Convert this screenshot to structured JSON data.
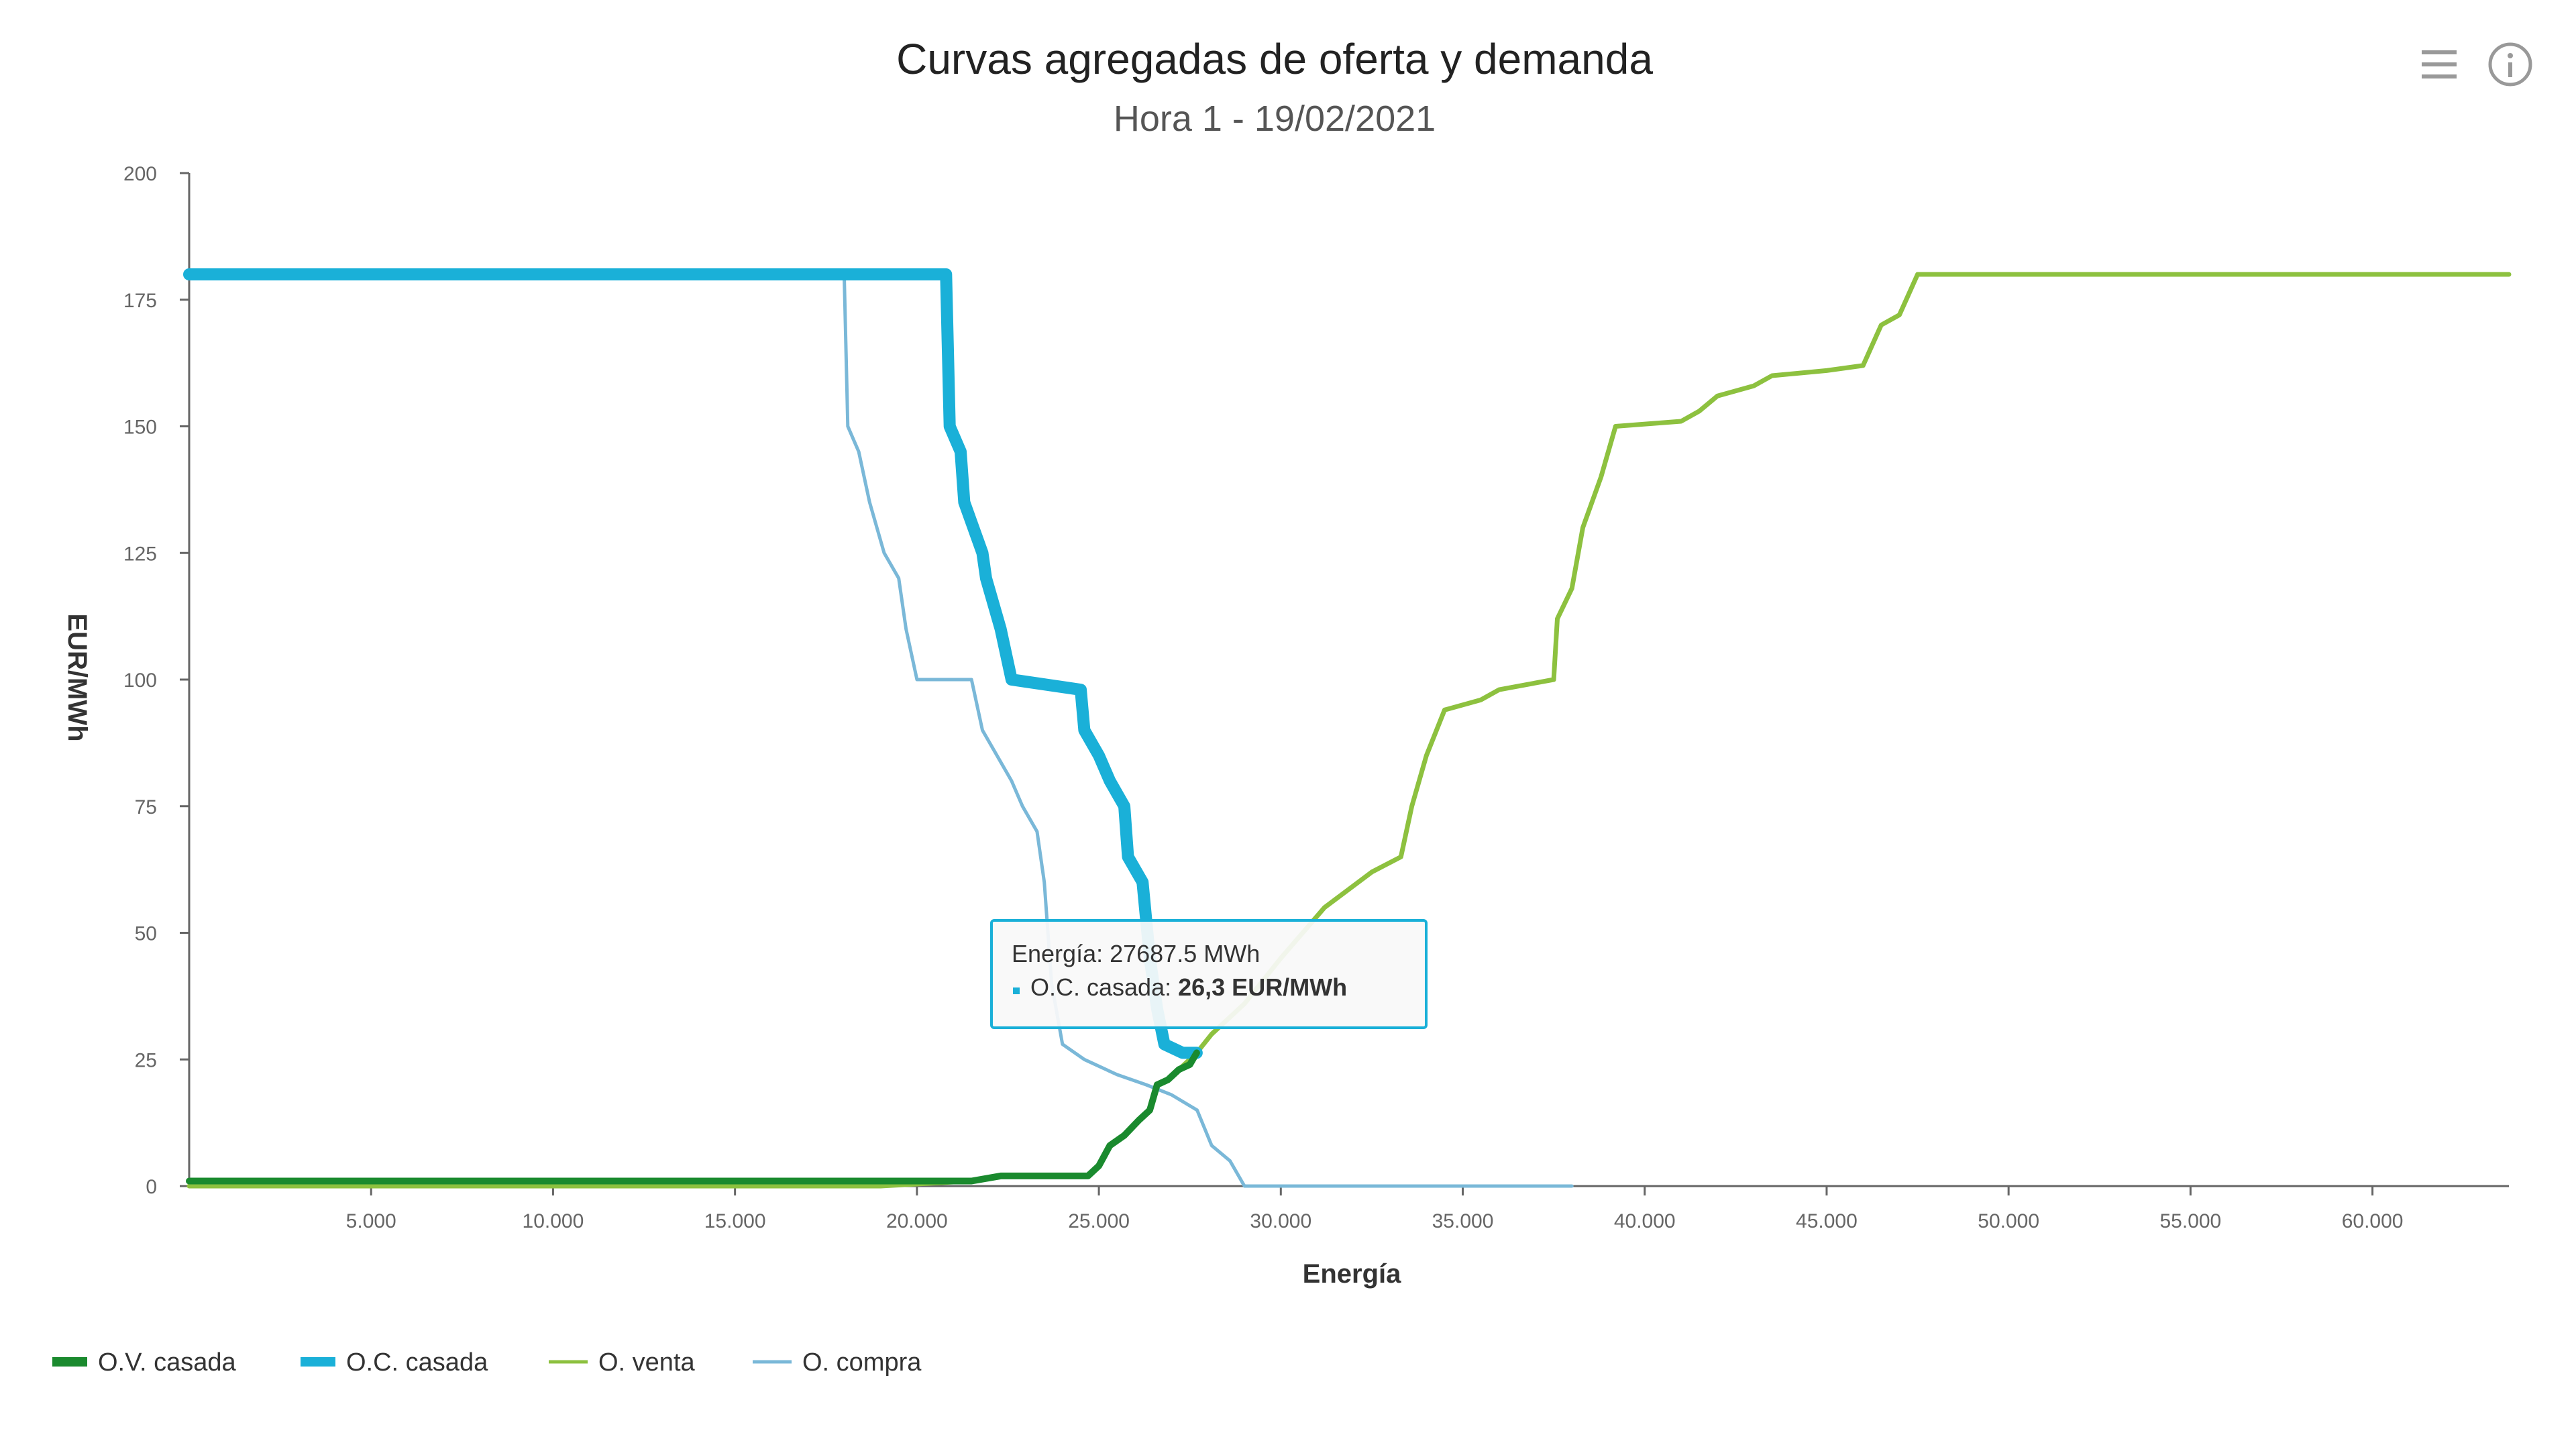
{
  "chart_data": {
    "type": "line",
    "title": "Curvas agregadas de oferta y demanda",
    "subtitle": "Hora 1 - 19/02/2021",
    "xlabel": "Energía",
    "ylabel": "EUR/MWh",
    "xlim": [
      0,
      63750
    ],
    "ylim": [
      0,
      200
    ],
    "x_ticks": [
      5000,
      10000,
      15000,
      20000,
      25000,
      30000,
      35000,
      40000,
      45000,
      50000,
      55000,
      60000
    ],
    "x_tick_labels": [
      "5.000",
      "10.000",
      "15.000",
      "20.000",
      "25.000",
      "30.000",
      "35.000",
      "40.000",
      "45.000",
      "50.000",
      "55.000",
      "60.000"
    ],
    "y_ticks": [
      0,
      25,
      50,
      75,
      100,
      125,
      150,
      175,
      200
    ],
    "y_tick_labels": [
      "0",
      "25",
      "50",
      "75",
      "100",
      "125",
      "150",
      "175",
      "200"
    ],
    "grid": false,
    "legend_position": "bottom-left",
    "series": [
      {
        "name": "O.V. casada",
        "color": "#1a8a2e",
        "points": [
          [
            0,
            1
          ],
          [
            21500,
            1
          ],
          [
            22300,
            2
          ],
          [
            24700,
            2
          ],
          [
            25000,
            4
          ],
          [
            25300,
            8
          ],
          [
            25700,
            10
          ],
          [
            26100,
            13
          ],
          [
            26400,
            15
          ],
          [
            26600,
            20
          ],
          [
            26900,
            21
          ],
          [
            27200,
            23
          ],
          [
            27500,
            24
          ],
          [
            27687.5,
            26.3
          ]
        ]
      },
      {
        "name": "O.C. casada",
        "color": "#1ab0d8",
        "points": [
          [
            0,
            180
          ],
          [
            20800,
            180
          ],
          [
            20900,
            150
          ],
          [
            21200,
            145
          ],
          [
            21300,
            135
          ],
          [
            21800,
            125
          ],
          [
            21900,
            120
          ],
          [
            22300,
            110
          ],
          [
            22600,
            100
          ],
          [
            24500,
            98
          ],
          [
            24600,
            90
          ],
          [
            25000,
            85
          ],
          [
            25300,
            80
          ],
          [
            25700,
            75
          ],
          [
            25800,
            65
          ],
          [
            26200,
            60
          ],
          [
            26400,
            45
          ],
          [
            26600,
            35
          ],
          [
            26800,
            28
          ],
          [
            27300,
            26.3
          ],
          [
            27687.5,
            26.3
          ]
        ]
      },
      {
        "name": "O. venta",
        "color": "#8dc13f",
        "points": [
          [
            0,
            0
          ],
          [
            19000,
            0
          ],
          [
            21500,
            1
          ],
          [
            22300,
            2
          ],
          [
            24700,
            2
          ],
          [
            25000,
            4
          ],
          [
            25300,
            8
          ],
          [
            25700,
            10
          ],
          [
            26100,
            13
          ],
          [
            26400,
            15
          ],
          [
            26600,
            20
          ],
          [
            26900,
            21
          ],
          [
            27200,
            23
          ],
          [
            27687.5,
            26.3
          ],
          [
            28100,
            30
          ],
          [
            29000,
            36
          ],
          [
            30000,
            45
          ],
          [
            31200,
            55
          ],
          [
            32500,
            62
          ],
          [
            33300,
            65
          ],
          [
            33600,
            75
          ],
          [
            34000,
            85
          ],
          [
            34500,
            94
          ],
          [
            35500,
            96
          ],
          [
            36000,
            98
          ],
          [
            37500,
            100
          ],
          [
            37600,
            112
          ],
          [
            38000,
            118
          ],
          [
            38300,
            130
          ],
          [
            38800,
            140
          ],
          [
            39200,
            150
          ],
          [
            41000,
            151
          ],
          [
            41500,
            153
          ],
          [
            42000,
            156
          ],
          [
            43000,
            158
          ],
          [
            43500,
            160
          ],
          [
            45000,
            161
          ],
          [
            46000,
            162
          ],
          [
            46500,
            170
          ],
          [
            47000,
            172
          ],
          [
            47500,
            180
          ],
          [
            63750,
            180
          ]
        ]
      },
      {
        "name": "O. compra",
        "color": "#7ab8d8",
        "points": [
          [
            0,
            180
          ],
          [
            18000,
            180
          ],
          [
            18100,
            150
          ],
          [
            18400,
            145
          ],
          [
            18700,
            135
          ],
          [
            19100,
            125
          ],
          [
            19500,
            120
          ],
          [
            19700,
            110
          ],
          [
            20000,
            100
          ],
          [
            21500,
            100
          ],
          [
            21800,
            90
          ],
          [
            22200,
            85
          ],
          [
            22600,
            80
          ],
          [
            22900,
            75
          ],
          [
            23300,
            70
          ],
          [
            23500,
            60
          ],
          [
            23700,
            40
          ],
          [
            24000,
            28
          ],
          [
            24600,
            25
          ],
          [
            25500,
            22
          ],
          [
            26300,
            20
          ],
          [
            27000,
            18
          ],
          [
            27700,
            15
          ],
          [
            28100,
            8
          ],
          [
            28600,
            5
          ],
          [
            29000,
            0
          ],
          [
            38000,
            0
          ]
        ]
      }
    ],
    "tooltip": {
      "line1_label": "Energía:",
      "line1_value": "27687.5 MWh",
      "line2_label": "O.C. casada:",
      "line2_value": "26,3 EUR/MWh"
    }
  },
  "menu_icon": "hamburger-menu-icon",
  "info_icon": "info-circle-icon",
  "colors": {
    "axis": "#666666",
    "tooltip_border": "#1ab0d8"
  }
}
